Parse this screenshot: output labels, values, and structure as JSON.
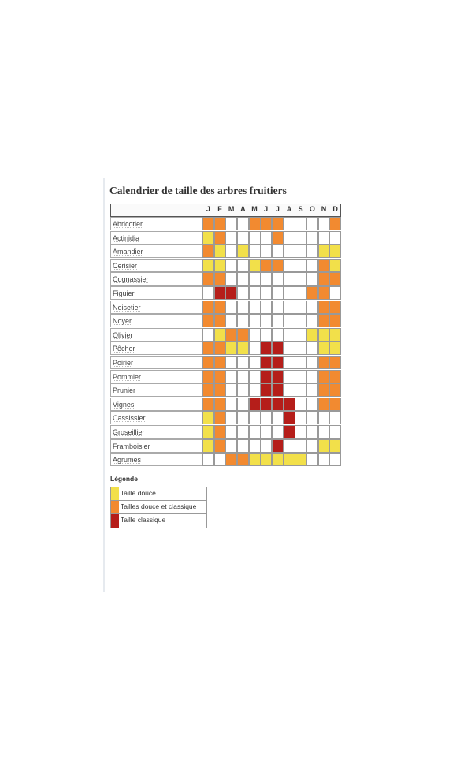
{
  "title": "Calendrier de taille des arbres fruitiers",
  "months": [
    "J",
    "F",
    "M",
    "A",
    "M",
    "J",
    "J",
    "A",
    "S",
    "O",
    "N",
    "D"
  ],
  "colors": {
    "douce": "#f2e04a",
    "mixte": "#f28a30",
    "classique": "#b51e1a"
  },
  "rows": [
    {
      "name": "Abricotier",
      "cells": [
        "m",
        "m",
        "",
        "",
        "m",
        "m",
        "m",
        "",
        "",
        "",
        "",
        "m"
      ]
    },
    {
      "name": "Actinidia",
      "cells": [
        "d",
        "m",
        "",
        "",
        "",
        "",
        "m",
        "",
        "",
        "",
        "",
        ""
      ]
    },
    {
      "name": "Amandier",
      "cells": [
        "m",
        "d",
        "",
        "d",
        "",
        "",
        "",
        "",
        "",
        "",
        "d",
        "d"
      ]
    },
    {
      "name": "Cerisier",
      "cells": [
        "d",
        "d",
        "",
        "",
        "d",
        "m",
        "m",
        "",
        "",
        "",
        "m",
        "d"
      ]
    },
    {
      "name": "Cognassier",
      "cells": [
        "m",
        "m",
        "",
        "",
        "",
        "",
        "",
        "",
        "",
        "",
        "m",
        "m"
      ]
    },
    {
      "name": "Figuier",
      "cells": [
        "",
        "c",
        "c",
        "",
        "",
        "",
        "",
        "",
        "",
        "m",
        "m",
        ""
      ]
    },
    {
      "name": "Noisetier",
      "cells": [
        "m",
        "m",
        "",
        "",
        "",
        "",
        "",
        "",
        "",
        "",
        "m",
        "m"
      ]
    },
    {
      "name": "Noyer",
      "cells": [
        "m",
        "m",
        "",
        "",
        "",
        "",
        "",
        "",
        "",
        "",
        "m",
        "m"
      ]
    },
    {
      "name": "Olivier",
      "cells": [
        "",
        "d",
        "m",
        "m",
        "",
        "",
        "",
        "",
        "",
        "d",
        "d",
        "d"
      ]
    },
    {
      "name": "Pêcher",
      "cells": [
        "m",
        "m",
        "d",
        "d",
        "",
        "c",
        "c",
        "",
        "",
        "",
        "d",
        "d"
      ]
    },
    {
      "name": "Poirier",
      "cells": [
        "m",
        "m",
        "",
        "",
        "",
        "c",
        "c",
        "",
        "",
        "",
        "m",
        "m"
      ]
    },
    {
      "name": "Pommier",
      "cells": [
        "m",
        "m",
        "",
        "",
        "",
        "c",
        "c",
        "",
        "",
        "",
        "m",
        "m"
      ]
    },
    {
      "name": "Prunier",
      "cells": [
        "m",
        "m",
        "",
        "",
        "",
        "c",
        "c",
        "",
        "",
        "",
        "m",
        "m"
      ]
    },
    {
      "name": "Vignes",
      "cells": [
        "m",
        "m",
        "",
        "",
        "c",
        "c",
        "c",
        "c",
        "",
        "",
        "m",
        "m"
      ]
    },
    {
      "name": "Cassissier",
      "cells": [
        "d",
        "m",
        "",
        "",
        "",
        "",
        "",
        "c",
        "",
        "",
        "",
        ""
      ]
    },
    {
      "name": "Groseillier",
      "cells": [
        "d",
        "m",
        "",
        "",
        "",
        "",
        "",
        "c",
        "",
        "",
        "",
        ""
      ]
    },
    {
      "name": "Framboisier",
      "cells": [
        "d",
        "m",
        "",
        "",
        "",
        "",
        "c",
        "",
        "",
        "",
        "d",
        "d"
      ]
    },
    {
      "name": "Agrumes",
      "cells": [
        "",
        "",
        "m",
        "m",
        "d",
        "d",
        "d",
        "d",
        "d",
        "",
        "",
        ""
      ]
    }
  ],
  "legend": {
    "title": "Légende",
    "items": [
      {
        "key": "d",
        "label": "Taille douce"
      },
      {
        "key": "m",
        "label": "Tailles douce et classique"
      },
      {
        "key": "c",
        "label": "Taille classique"
      }
    ]
  }
}
